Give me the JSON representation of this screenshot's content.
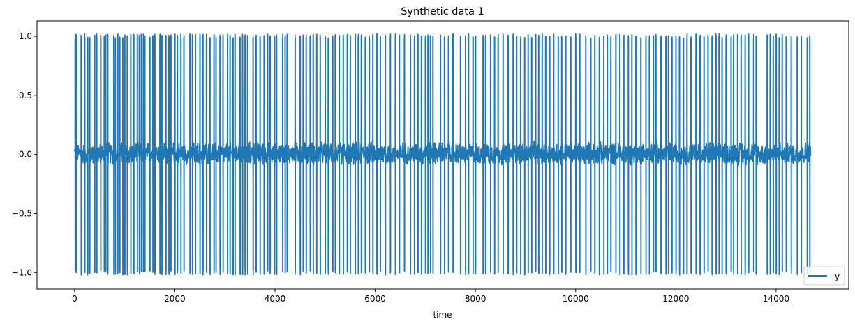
{
  "chart_data": {
    "type": "line",
    "title": "Synthetic data 1",
    "xlabel": "time",
    "ylabel": "",
    "xlim": [
      -750,
      15450
    ],
    "ylim": [
      -1.14,
      1.13
    ],
    "xticks": [
      0,
      2000,
      4000,
      6000,
      8000,
      10000,
      12000,
      14000
    ],
    "xtick_labels": [
      "0",
      "2000",
      "4000",
      "6000",
      "8000",
      "10000",
      "12000",
      "14000"
    ],
    "yticks": [
      1.0,
      0.5,
      0.0,
      -0.5,
      -1.0
    ],
    "ytick_labels": [
      "1.0",
      "0.5",
      "0.0",
      "−0.5",
      "−1.0"
    ],
    "legend": {
      "entries": [
        "y"
      ],
      "placement": "lower-right"
    },
    "color": "#1f77b4",
    "series": [
      {
        "name": "y",
        "x_range": [
          0,
          14690
        ],
        "baseline_noise_amplitude": 0.15,
        "pulse_amplitude": 1.0,
        "pulse_times": [
          10,
          30,
          130,
          200,
          260,
          300,
          400,
          440,
          520,
          590,
          620,
          660,
          780,
          810,
          860,
          900,
          960,
          1000,
          1050,
          1120,
          1180,
          1250,
          1290,
          1330,
          1370,
          1400,
          1500,
          1560,
          1600,
          1700,
          1740,
          1820,
          1880,
          1920,
          2000,
          2050,
          2120,
          2180,
          2300,
          2350,
          2410,
          2500,
          2560,
          2630,
          2700,
          2780,
          2820,
          2900,
          2960,
          3050,
          3100,
          3160,
          3200,
          3300,
          3350,
          3400,
          3450,
          3560,
          3620,
          3700,
          3780,
          3850,
          3900,
          3990,
          4030,
          4150,
          4200,
          4240,
          4400,
          4500,
          4560,
          4620,
          4700,
          4760,
          4830,
          4900,
          5000,
          5060,
          5150,
          5200,
          5280,
          5360,
          5440,
          5500,
          5600,
          5660,
          5720,
          5800,
          5880,
          5950,
          6030,
          6100,
          6200,
          6300,
          6400,
          6480,
          6580,
          6700,
          6780,
          6850,
          6920,
          7000,
          7050,
          7100,
          7150,
          7300,
          7380,
          7460,
          7550,
          7700,
          7800,
          7860,
          7950,
          8000,
          8150,
          8200,
          8300,
          8380,
          8450,
          8550,
          8650,
          8750,
          8820,
          8900,
          8980,
          9050,
          9120,
          9200,
          9260,
          9330,
          9400,
          9480,
          9560,
          9650,
          9720,
          9800,
          9900,
          10000,
          10080,
          10200,
          10300,
          10380,
          10470,
          10560,
          10630,
          10700,
          10800,
          10880,
          10960,
          11050,
          11120,
          11200,
          11300,
          11400,
          11470,
          11550,
          11600,
          11700,
          11800,
          11850,
          11920,
          12000,
          12070,
          12150,
          12220,
          12300,
          12400,
          12480,
          12560,
          12640,
          12720,
          12800,
          12860,
          12920,
          13000,
          13100,
          13150,
          13230,
          13300,
          13380,
          13450,
          13550,
          13600,
          13820,
          13880,
          13940,
          14000,
          14060,
          14120,
          14200,
          14300,
          14420,
          14500,
          14620,
          14670
        ]
      }
    ]
  }
}
